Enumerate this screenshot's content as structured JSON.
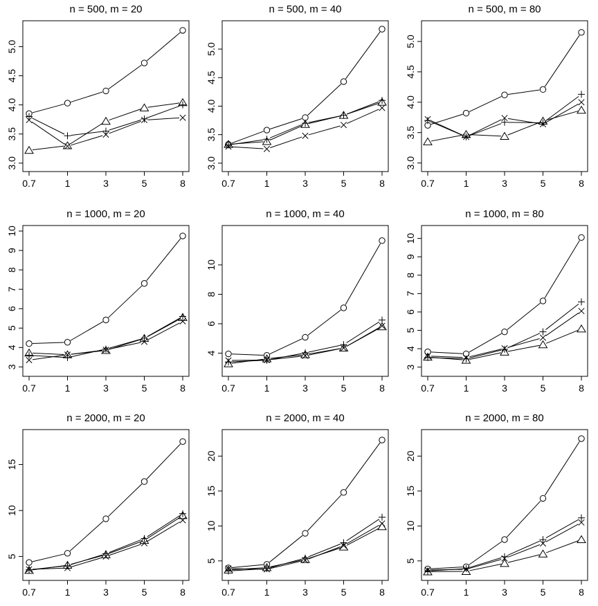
{
  "chart_data": [
    {
      "type": "line",
      "title": "n = 500, m = 20",
      "categories": [
        "0.7",
        "1",
        "3",
        "5",
        "8"
      ],
      "ylim": [
        2.95,
        5.35
      ],
      "yticks": [
        "3.0",
        "3.5",
        "4.0",
        "4.5",
        "5.0"
      ],
      "series": [
        {
          "marker": "circle",
          "values": [
            3.85,
            4.03,
            4.24,
            4.72,
            5.28
          ]
        },
        {
          "marker": "plus",
          "values": [
            3.8,
            3.47,
            3.55,
            3.76,
            4.0
          ]
        },
        {
          "marker": "cross",
          "values": [
            3.74,
            3.29,
            3.49,
            3.74,
            3.78
          ]
        },
        {
          "marker": "triangle",
          "values": [
            3.22,
            3.3,
            3.72,
            3.95,
            4.04
          ]
        }
      ]
    },
    {
      "type": "line",
      "title": "n = 500, m = 40",
      "categories": [
        "0.7",
        "1",
        "3",
        "5",
        "8"
      ],
      "ylim": [
        2.95,
        5.4
      ],
      "yticks": [
        "3.0",
        "3.5",
        "4.0",
        "4.5",
        "5.0"
      ],
      "series": [
        {
          "marker": "circle",
          "values": [
            3.33,
            3.58,
            3.8,
            4.43,
            5.35
          ]
        },
        {
          "marker": "plus",
          "values": [
            3.32,
            3.42,
            3.7,
            3.84,
            4.1
          ]
        },
        {
          "marker": "cross",
          "values": [
            3.29,
            3.25,
            3.48,
            3.67,
            3.97
          ]
        },
        {
          "marker": "triangle",
          "values": [
            3.33,
            3.38,
            3.68,
            3.84,
            4.07
          ]
        }
      ]
    },
    {
      "type": "line",
      "title": "n = 500, m = 80",
      "categories": [
        "0.7",
        "1",
        "3",
        "5",
        "8"
      ],
      "ylim": [
        2.95,
        5.25
      ],
      "yticks": [
        "3.0",
        "3.5",
        "4.0",
        "4.5",
        "5.0"
      ],
      "series": [
        {
          "marker": "circle",
          "values": [
            3.62,
            3.82,
            4.12,
            4.21,
            5.15
          ]
        },
        {
          "marker": "plus",
          "values": [
            3.7,
            3.43,
            3.67,
            3.66,
            4.13
          ]
        },
        {
          "marker": "cross",
          "values": [
            3.72,
            3.43,
            3.74,
            3.64,
            4.0
          ]
        },
        {
          "marker": "triangle",
          "values": [
            3.35,
            3.47,
            3.44,
            3.69,
            3.87
          ]
        }
      ]
    },
    {
      "type": "line",
      "title": "n = 1000, m = 20",
      "categories": [
        "0.7",
        "1",
        "3",
        "5",
        "8"
      ],
      "ylim": [
        2.8,
        10.0
      ],
      "yticks": [
        "3",
        "4",
        "5",
        "6",
        "7",
        "8",
        "9",
        "10"
      ],
      "series": [
        {
          "marker": "circle",
          "values": [
            4.2,
            4.27,
            5.42,
            7.3,
            9.75
          ]
        },
        {
          "marker": "plus",
          "values": [
            3.6,
            3.48,
            3.92,
            4.48,
            5.6
          ]
        },
        {
          "marker": "cross",
          "values": [
            3.35,
            3.63,
            3.88,
            4.3,
            5.35
          ]
        },
        {
          "marker": "triangle",
          "values": [
            3.72,
            3.63,
            3.85,
            4.47,
            5.55
          ]
        }
      ]
    },
    {
      "type": "line",
      "title": "n = 1000, m = 40",
      "categories": [
        "0.7",
        "1",
        "3",
        "5",
        "8"
      ],
      "ylim": [
        2.8,
        12.3
      ],
      "yticks": [
        "4",
        "6",
        "8",
        "10"
      ],
      "series": [
        {
          "marker": "circle",
          "values": [
            3.95,
            3.85,
            5.08,
            7.08,
            11.65
          ]
        },
        {
          "marker": "plus",
          "values": [
            3.4,
            3.52,
            4.02,
            4.58,
            6.25
          ]
        },
        {
          "marker": "cross",
          "values": [
            3.5,
            3.53,
            3.82,
            4.35,
            5.85
          ]
        },
        {
          "marker": "triangle",
          "values": [
            3.28,
            3.62,
            3.9,
            4.35,
            5.8
          ]
        }
      ]
    },
    {
      "type": "line",
      "title": "n = 1000, m = 80",
      "categories": [
        "0.7",
        "1",
        "3",
        "5",
        "8"
      ],
      "ylim": [
        2.8,
        10.4
      ],
      "yticks": [
        "3",
        "4",
        "5",
        "6",
        "7",
        "8",
        "9",
        "10"
      ],
      "series": [
        {
          "marker": "circle",
          "values": [
            3.83,
            3.72,
            4.92,
            6.6,
            10.05
          ]
        },
        {
          "marker": "plus",
          "values": [
            3.52,
            3.45,
            3.97,
            4.92,
            6.55
          ]
        },
        {
          "marker": "cross",
          "values": [
            3.6,
            3.52,
            4.02,
            4.6,
            6.05
          ]
        },
        {
          "marker": "triangle",
          "values": [
            3.55,
            3.38,
            3.82,
            4.22,
            5.08
          ]
        }
      ]
    },
    {
      "type": "line",
      "title": "n = 2000, m = 20",
      "categories": [
        "0.7",
        "1",
        "3",
        "5",
        "8"
      ],
      "ylim": [
        3.0,
        18.2
      ],
      "yticks": [
        "5",
        "10",
        "15"
      ],
      "series": [
        {
          "marker": "circle",
          "values": [
            4.35,
            5.35,
            9.1,
            13.15,
            17.5
          ]
        },
        {
          "marker": "plus",
          "values": [
            3.55,
            4.0,
            5.3,
            6.95,
            9.65
          ]
        },
        {
          "marker": "cross",
          "values": [
            3.6,
            3.75,
            5.0,
            6.45,
            8.95
          ]
        },
        {
          "marker": "triangle",
          "values": [
            3.5,
            4.05,
            5.2,
            6.75,
            9.45
          ]
        }
      ]
    },
    {
      "type": "line",
      "title": "n = 2000, m = 40",
      "categories": [
        "0.7",
        "1",
        "3",
        "5",
        "8"
      ],
      "ylim": [
        3.0,
        23.0
      ],
      "yticks": [
        "5",
        "10",
        "15",
        "20"
      ],
      "series": [
        {
          "marker": "circle",
          "values": [
            4.0,
            4.5,
            8.95,
            14.8,
            22.3
          ]
        },
        {
          "marker": "plus",
          "values": [
            3.55,
            3.9,
            5.4,
            7.6,
            11.25
          ]
        },
        {
          "marker": "cross",
          "values": [
            3.9,
            3.8,
            5.1,
            7.2,
            10.35
          ]
        },
        {
          "marker": "triangle",
          "values": [
            3.7,
            4.05,
            5.2,
            7.0,
            9.9
          ]
        }
      ]
    },
    {
      "type": "line",
      "title": "n = 2000, m = 80",
      "categories": [
        "0.7",
        "1",
        "3",
        "5",
        "8"
      ],
      "ylim": [
        3.0,
        23.0
      ],
      "yticks": [
        "5",
        "10",
        "15",
        "20"
      ],
      "series": [
        {
          "marker": "circle",
          "values": [
            3.85,
            4.15,
            8.05,
            13.95,
            22.5
          ]
        },
        {
          "marker": "plus",
          "values": [
            3.55,
            3.9,
            5.6,
            8.05,
            11.15
          ]
        },
        {
          "marker": "cross",
          "values": [
            3.7,
            3.8,
            5.35,
            7.5,
            10.5
          ]
        },
        {
          "marker": "triangle",
          "values": [
            3.45,
            3.5,
            4.65,
            6.0,
            8.05
          ]
        }
      ]
    }
  ]
}
